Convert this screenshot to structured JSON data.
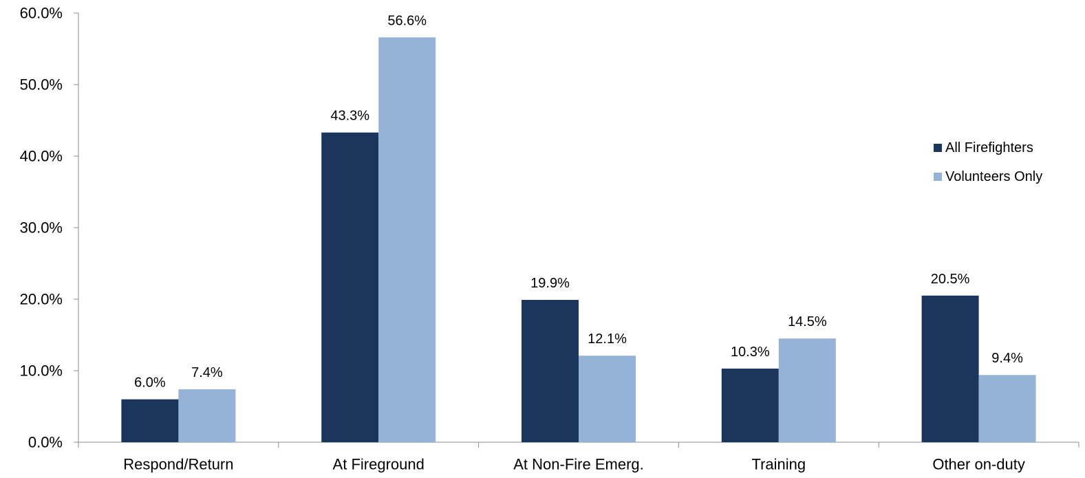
{
  "chart_data": {
    "type": "bar",
    "categories": [
      "Respond/Return",
      "At Fireground",
      "At Non-Fire Emerg.",
      "Training",
      "Other on-duty"
    ],
    "series": [
      {
        "name": "All Firefighters",
        "values": [
          6.0,
          43.3,
          19.9,
          10.3,
          20.5
        ],
        "color": "#1b365d"
      },
      {
        "name": "Volunteers Only",
        "values": [
          7.4,
          56.6,
          12.1,
          14.5,
          9.4
        ],
        "color": "#95b3d7"
      }
    ],
    "data_labels": [
      [
        "6.0%",
        "43.3%",
        "19.9%",
        "10.3%",
        "20.5%"
      ],
      [
        "7.4%",
        "56.6%",
        "12.1%",
        "14.5%",
        "9.4%"
      ]
    ],
    "y_ticks": [
      "0.0%",
      "10.0%",
      "20.0%",
      "30.0%",
      "40.0%",
      "50.0%",
      "60.0%"
    ],
    "ylim": [
      0,
      60
    ],
    "title": "",
    "xlabel": "",
    "ylabel": "",
    "grid": false,
    "legend_position": "right"
  }
}
